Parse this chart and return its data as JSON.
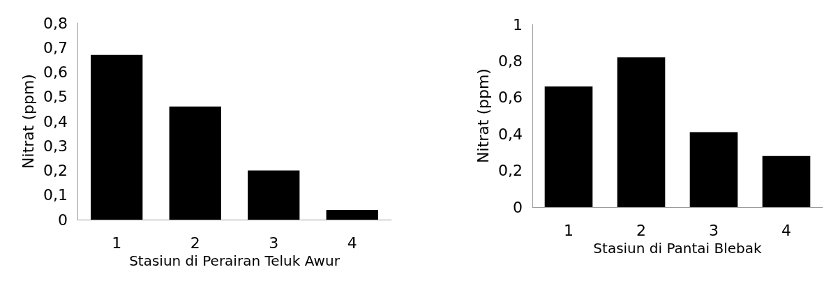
{
  "chart_data": [
    {
      "type": "bar",
      "xlabel": "Stasiun di Perairan Teluk Awur",
      "ylabel": "Nitrat (ppm)",
      "categories": [
        "1",
        "2",
        "3",
        "4"
      ],
      "values": [
        0.67,
        0.46,
        0.2,
        0.04
      ],
      "color": "#000000",
      "ylim": [
        0,
        0.8
      ],
      "yticks": [
        {
          "value": 0,
          "label": "0"
        },
        {
          "value": 0.1,
          "label": "0,1"
        },
        {
          "value": 0.2,
          "label": "0,2"
        },
        {
          "value": 0.3,
          "label": "0,3"
        },
        {
          "value": 0.4,
          "label": "0,4"
        },
        {
          "value": 0.5,
          "label": "0,5"
        },
        {
          "value": 0.6,
          "label": "0,6"
        },
        {
          "value": 0.7,
          "label": "0,7"
        },
        {
          "value": 0.8,
          "label": "0,8"
        }
      ],
      "grid": false
    },
    {
      "type": "bar",
      "xlabel": "Stasiun di Pantai Blebak",
      "ylabel": "Nitrat (ppm)",
      "categories": [
        "1",
        "2",
        "3",
        "4"
      ],
      "values": [
        0.66,
        0.82,
        0.41,
        0.28
      ],
      "color": "#000000",
      "ylim": [
        0,
        1
      ],
      "yticks": [
        {
          "value": 0,
          "label": "0"
        },
        {
          "value": 0.2,
          "label": "0,2"
        },
        {
          "value": 0.4,
          "label": "0,4"
        },
        {
          "value": 0.6,
          "label": "0,6"
        },
        {
          "value": 0.8,
          "label": "0,8"
        },
        {
          "value": 1,
          "label": "1"
        }
      ],
      "grid": false
    }
  ]
}
